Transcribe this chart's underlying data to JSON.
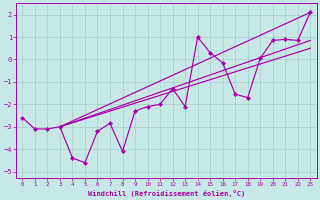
{
  "xlabel": "Windchill (Refroidissement éolien,°C)",
  "xlim_min": -0.5,
  "xlim_max": 23.5,
  "ylim_min": -5.3,
  "ylim_max": 2.5,
  "yticks": [
    -5,
    -4,
    -3,
    -2,
    -1,
    0,
    1,
    2
  ],
  "xticks": [
    0,
    1,
    2,
    3,
    4,
    5,
    6,
    7,
    8,
    9,
    10,
    11,
    12,
    13,
    14,
    15,
    16,
    17,
    18,
    19,
    20,
    21,
    22,
    23
  ],
  "bg_color": "#c8e8e8",
  "grid_color": "#a8cccc",
  "line_color": "#aa00aa",
  "line1_x": [
    0,
    1,
    2,
    3,
    4,
    5,
    6,
    7,
    8,
    9,
    10,
    11,
    12,
    13,
    14,
    15,
    16,
    17,
    18,
    19,
    20,
    21,
    22,
    23
  ],
  "line1_y": [
    -2.6,
    -3.1,
    -3.1,
    -3.0,
    -4.4,
    -4.6,
    -3.2,
    -2.85,
    -4.1,
    -2.3,
    -2.1,
    -2.0,
    -1.3,
    -2.1,
    1.0,
    0.3,
    -0.15,
    -1.55,
    -1.7,
    0.05,
    0.85,
    0.9,
    0.85,
    2.1
  ],
  "line2_x": [
    3,
    23
  ],
  "line2_y": [
    -3.0,
    2.1
  ],
  "line3_x": [
    3,
    23
  ],
  "line3_y": [
    -3.0,
    0.85
  ],
  "line4_x": [
    3,
    23
  ],
  "line4_y": [
    -3.0,
    0.5
  ]
}
